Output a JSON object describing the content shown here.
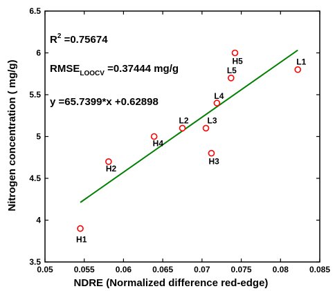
{
  "chart_data": {
    "type": "scatter",
    "xlabel": "NDRE (Normalized difference red-edge)",
    "ylabel": "Nitrogen concentration ( mg/g)",
    "xlim": [
      0.05,
      0.085
    ],
    "ylim": [
      3.5,
      6.5
    ],
    "xticks": [
      "0.05",
      "0.055",
      "0.06",
      "0.065",
      "0.07",
      "0.075",
      "0.08",
      "0.085"
    ],
    "yticks": [
      "3.5",
      "4",
      "4.5",
      "5",
      "5.5",
      "6",
      "6.5"
    ],
    "grid": false,
    "marker_color": "#ff0000",
    "line_color": "#008000",
    "points": [
      {
        "label": "H1",
        "x": 0.0545,
        "y": 3.9
      },
      {
        "label": "H2",
        "x": 0.0581,
        "y": 4.7
      },
      {
        "label": "H4",
        "x": 0.0639,
        "y": 5.0
      },
      {
        "label": "L2",
        "x": 0.0675,
        "y": 5.1
      },
      {
        "label": "L3",
        "x": 0.0705,
        "y": 5.1
      },
      {
        "label": "H3",
        "x": 0.0712,
        "y": 4.8
      },
      {
        "label": "L4",
        "x": 0.0719,
        "y": 5.4
      },
      {
        "label": "L5",
        "x": 0.0737,
        "y": 5.7
      },
      {
        "label": "H5",
        "x": 0.0742,
        "y": 6.0
      },
      {
        "label": "L1",
        "x": 0.0822,
        "y": 5.8
      }
    ],
    "fit_line": {
      "x": [
        0.0545,
        0.0822
      ],
      "slope": 65.7399,
      "intercept": 0.62898
    },
    "annotations": {
      "r2_prefix": "R",
      "r2_sup": "2",
      "r2_value": " =0.75674",
      "rmse_prefix": "RMSE",
      "rmse_sub": "LOOCV",
      "rmse_value": " =0.37444 mg/g",
      "equation": "y =65.7399*x +0.62898"
    }
  }
}
